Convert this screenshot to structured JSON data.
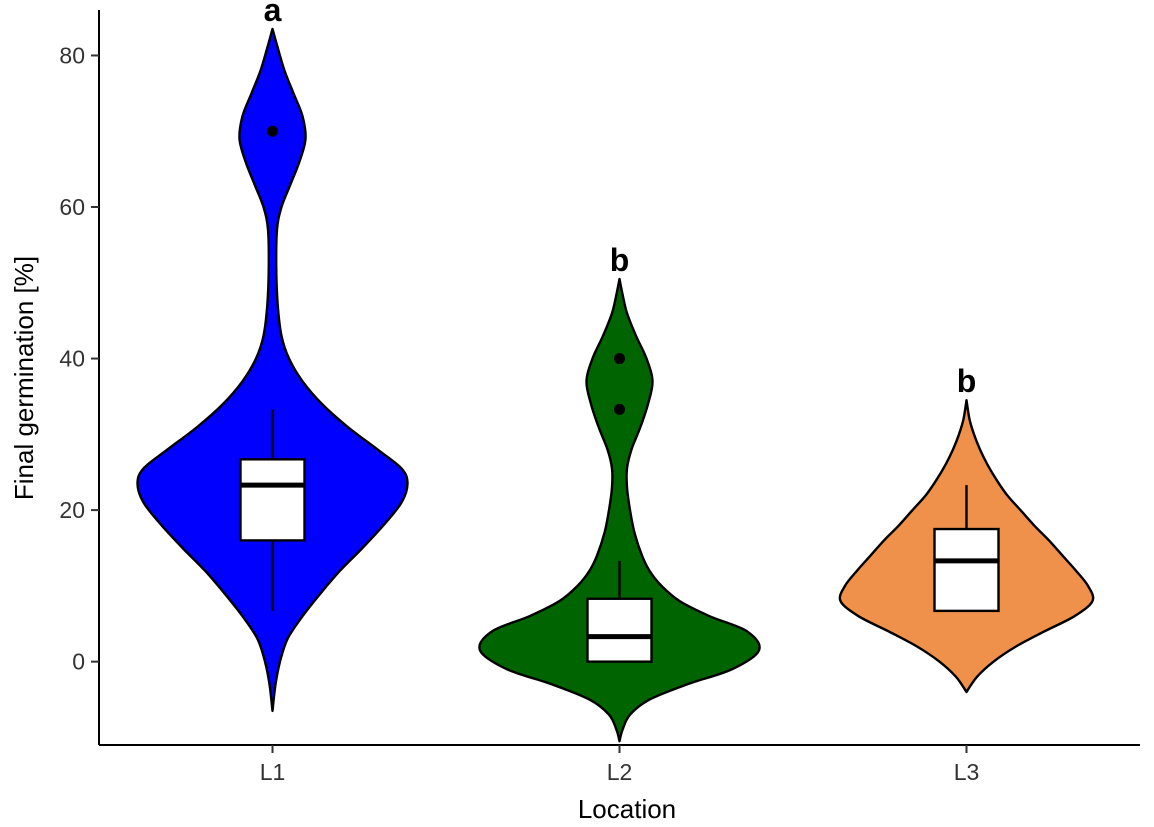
{
  "chart_data": {
    "type": "violin",
    "title": "",
    "xlabel": "Location",
    "ylabel": "Final germination [%]",
    "ylim": [
      -11,
      86
    ],
    "yticks": [
      0,
      20,
      40,
      60,
      80
    ],
    "grid": false,
    "legend": "none",
    "categories": [
      "L1",
      "L2",
      "L3"
    ],
    "groups": [
      {
        "name": "L1",
        "color": "#0000FF",
        "significance": "a",
        "box": {
          "q1": 16,
          "median": 23.3,
          "q3": 26.7,
          "whisker_low": 6.7,
          "whisker_high": 33.3
        },
        "outliers": [
          70
        ],
        "violin_range": [
          -6.5,
          83.5
        ],
        "density": [
          [
            -6.5,
            0
          ],
          [
            -3,
            0.02
          ],
          [
            0,
            0.05
          ],
          [
            3,
            0.1
          ],
          [
            6,
            0.2
          ],
          [
            9,
            0.32
          ],
          [
            12,
            0.45
          ],
          [
            15,
            0.6
          ],
          [
            18,
            0.74
          ],
          [
            21,
            0.86
          ],
          [
            23.5,
            0.9
          ],
          [
            25.5,
            0.86
          ],
          [
            28,
            0.7
          ],
          [
            31,
            0.5
          ],
          [
            34,
            0.33
          ],
          [
            37,
            0.2
          ],
          [
            40,
            0.11
          ],
          [
            43,
            0.06
          ],
          [
            47,
            0.035
          ],
          [
            52,
            0.025
          ],
          [
            57,
            0.03
          ],
          [
            60,
            0.06
          ],
          [
            63,
            0.12
          ],
          [
            66,
            0.18
          ],
          [
            69,
            0.22
          ],
          [
            72,
            0.2
          ],
          [
            75,
            0.14
          ],
          [
            78,
            0.08
          ],
          [
            81,
            0.035
          ],
          [
            83.5,
            0
          ]
        ]
      },
      {
        "name": "L2",
        "color": "#006400",
        "significance": "b",
        "box": {
          "q1": 0,
          "median": 3.3,
          "q3": 8.3,
          "whisker_low": 0,
          "whisker_high": 13.3
        },
        "outliers": [
          33.3,
          40
        ],
        "violin_range": [
          -10.5,
          50.5
        ],
        "density": [
          [
            -10.5,
            0
          ],
          [
            -9,
            0.02
          ],
          [
            -7,
            0.07
          ],
          [
            -5,
            0.2
          ],
          [
            -3,
            0.45
          ],
          [
            -1,
            0.75
          ],
          [
            1.5,
            0.93
          ],
          [
            4,
            0.85
          ],
          [
            6,
            0.6
          ],
          [
            8,
            0.4
          ],
          [
            10,
            0.28
          ],
          [
            12,
            0.2
          ],
          [
            14,
            0.15
          ],
          [
            17,
            0.1
          ],
          [
            20,
            0.07
          ],
          [
            23,
            0.05
          ],
          [
            25.5,
            0.05
          ],
          [
            28,
            0.08
          ],
          [
            31,
            0.14
          ],
          [
            34,
            0.19
          ],
          [
            37,
            0.22
          ],
          [
            40,
            0.18
          ],
          [
            43,
            0.11
          ],
          [
            46,
            0.05
          ],
          [
            48.5,
            0.02
          ],
          [
            50.5,
            0
          ]
        ]
      },
      {
        "name": "L3",
        "color": "#F0914B",
        "significance": "b",
        "box": {
          "q1": 6.7,
          "median": 13.3,
          "q3": 17.5,
          "whisker_low": 6.7,
          "whisker_high": 23.3
        },
        "outliers": [],
        "violin_range": [
          -4,
          34.5
        ],
        "density": [
          [
            -4,
            0
          ],
          [
            -2,
            0.07
          ],
          [
            0,
            0.18
          ],
          [
            2,
            0.33
          ],
          [
            4,
            0.52
          ],
          [
            6,
            0.72
          ],
          [
            8,
            0.84
          ],
          [
            10,
            0.81
          ],
          [
            12,
            0.73
          ],
          [
            14,
            0.64
          ],
          [
            16,
            0.55
          ],
          [
            18,
            0.45
          ],
          [
            20,
            0.36
          ],
          [
            22,
            0.27
          ],
          [
            24,
            0.2
          ],
          [
            26,
            0.14
          ],
          [
            28,
            0.09
          ],
          [
            30,
            0.05
          ],
          [
            32,
            0.02
          ],
          [
            34.5,
            0
          ]
        ]
      }
    ]
  }
}
